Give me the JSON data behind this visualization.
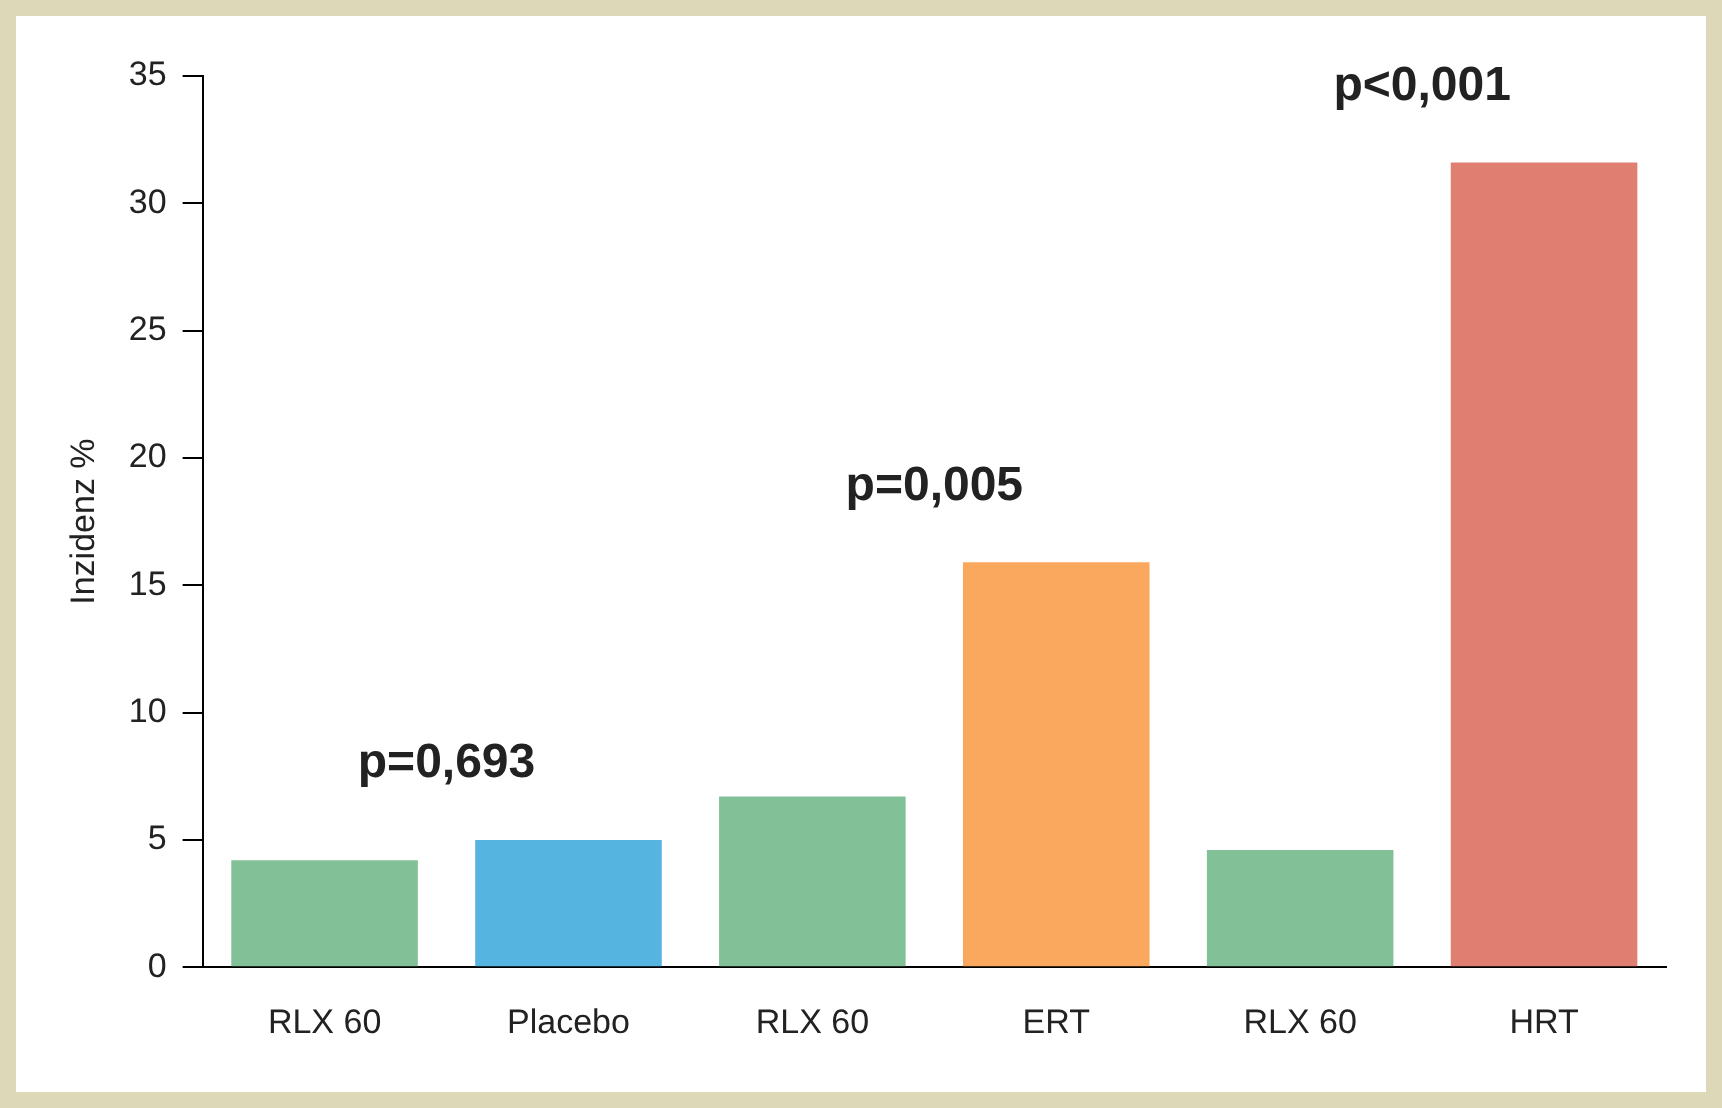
{
  "chart_data": {
    "type": "bar",
    "ylabel": "Inzidenz %",
    "categories": [
      "RLX 60",
      "Placebo",
      "RLX 60",
      "ERT",
      "RLX 60",
      "HRT"
    ],
    "values": [
      4.2,
      5.0,
      6.7,
      15.9,
      4.6,
      31.6
    ],
    "colors": [
      "#82c197",
      "#56b4e0",
      "#82c197",
      "#f9a85e",
      "#82c197",
      "#e07e72"
    ],
    "ylim": [
      0,
      35
    ],
    "yticks": [
      0,
      5,
      10,
      15,
      20,
      25,
      30,
      35
    ],
    "grid": false,
    "legend": false,
    "annotations": [
      "p=0,693",
      "p=0,005",
      "p<0,001"
    ]
  }
}
